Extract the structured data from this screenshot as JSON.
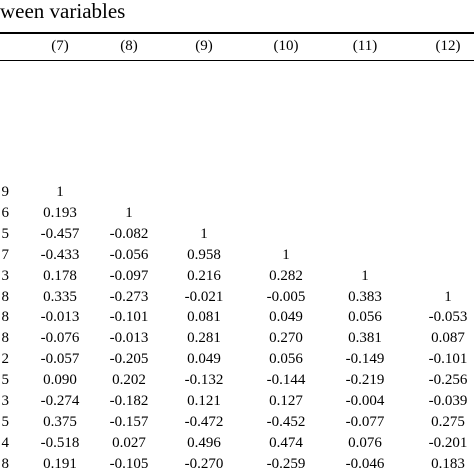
{
  "title": "ween variables",
  "columns": [
    "(7)",
    "(8)",
    "(9)",
    "(10)",
    "(11)",
    "(12)"
  ],
  "left_edge": [
    "9",
    "6",
    "5",
    "7",
    "3",
    "8",
    "8",
    "8",
    "2",
    "5",
    "3",
    "5",
    "4",
    "8"
  ],
  "rows": [
    [
      "1",
      "",
      "",
      "",
      "",
      ""
    ],
    [
      "0.193",
      "1",
      "",
      "",
      "",
      ""
    ],
    [
      "-0.457",
      "-0.082",
      "1",
      "",
      "",
      ""
    ],
    [
      "-0.433",
      "-0.056",
      "0.958",
      "1",
      "",
      ""
    ],
    [
      "0.178",
      "-0.097",
      "0.216",
      "0.282",
      "1",
      ""
    ],
    [
      "0.335",
      "-0.273",
      "-0.021",
      "-0.005",
      "0.383",
      "1"
    ],
    [
      "-0.013",
      "-0.101",
      "0.081",
      "0.049",
      "0.056",
      "-0.053"
    ],
    [
      "-0.076",
      "-0.013",
      "0.281",
      "0.270",
      "0.381",
      "0.087"
    ],
    [
      "-0.057",
      "-0.205",
      "0.049",
      "0.056",
      "-0.149",
      "-0.101"
    ],
    [
      "0.090",
      "0.202",
      "-0.132",
      "-0.144",
      "-0.219",
      "-0.256"
    ],
    [
      "-0.274",
      "-0.182",
      "0.121",
      "0.127",
      "-0.004",
      "-0.039"
    ],
    [
      "0.375",
      "-0.157",
      "-0.472",
      "-0.452",
      "-0.077",
      "0.275"
    ],
    [
      "-0.518",
      "0.027",
      "0.496",
      "0.474",
      "0.076",
      "-0.201"
    ],
    [
      "0.191",
      "-0.105",
      "-0.270",
      "-0.259",
      "-0.046",
      "0.183"
    ]
  ]
}
